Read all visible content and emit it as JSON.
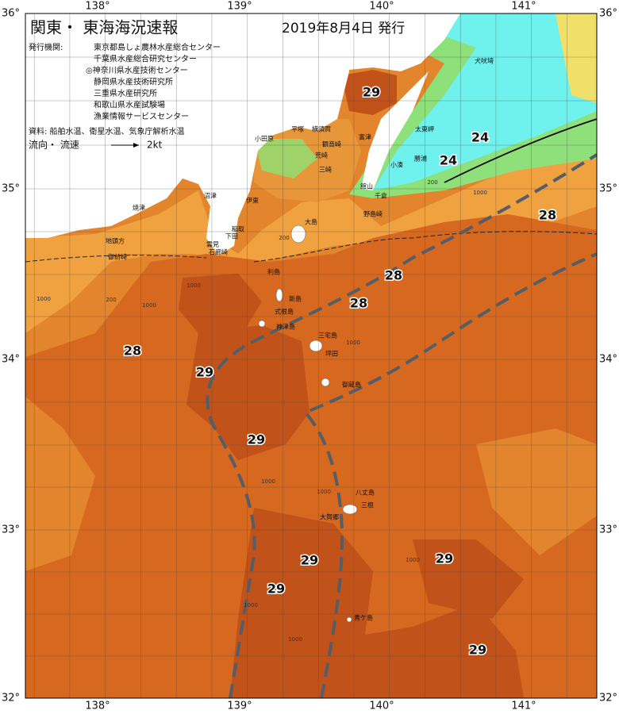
{
  "header": {
    "title": "関東・ 東海海況速報",
    "date": "2019年8月4日 発行"
  },
  "legend": {
    "issuers_label": "発行機関:",
    "issuers": [
      "東京都島しょ農林水産総合センター",
      "千葉県水産総合研究センター",
      "◎神奈川県水産技術センター",
      "静岡県水産技術研究所",
      "三重県水産研究所",
      "和歌山県水産試験場",
      "漁業情報サービスセンター"
    ],
    "sources": "資料: 船舶水温、衛星水温、気象庁解析水温",
    "current_label": "流向・ 流速",
    "current_speed": "2kt"
  },
  "axes": {
    "longitude": [
      "138°",
      "139°",
      "140°",
      "141°"
    ],
    "latitude": [
      "36°",
      "35°",
      "34°",
      "33°",
      "32°"
    ]
  },
  "places": [
    "犬吠埼",
    "太東岬",
    "勝浦",
    "小湊",
    "館山",
    "千倉",
    "野島崎",
    "小田原",
    "平塚",
    "横須賀",
    "富津",
    "観音崎",
    "荒崎",
    "三崎",
    "沼津",
    "焼津",
    "伊東",
    "稲取",
    "下田",
    "雲見",
    "石廊崎",
    "地頭方",
    "御前崎",
    "大島",
    "利島",
    "新島",
    "式根島",
    "神津島",
    "三宅島",
    "坪田",
    "御蔵島",
    "八丈島",
    "三根",
    "大賀郷",
    "青ケ島"
  ],
  "temperature_labels": [
    "29",
    "24",
    "24",
    "28",
    "28",
    "28",
    "28",
    "29",
    "29",
    "29",
    "29",
    "29",
    "29"
  ],
  "depth_labels": [
    "200",
    "1000",
    "1000",
    "200",
    "1000",
    "1000",
    "1000",
    "1000",
    "1000",
    "1000",
    "1000",
    "200",
    "1000"
  ]
}
